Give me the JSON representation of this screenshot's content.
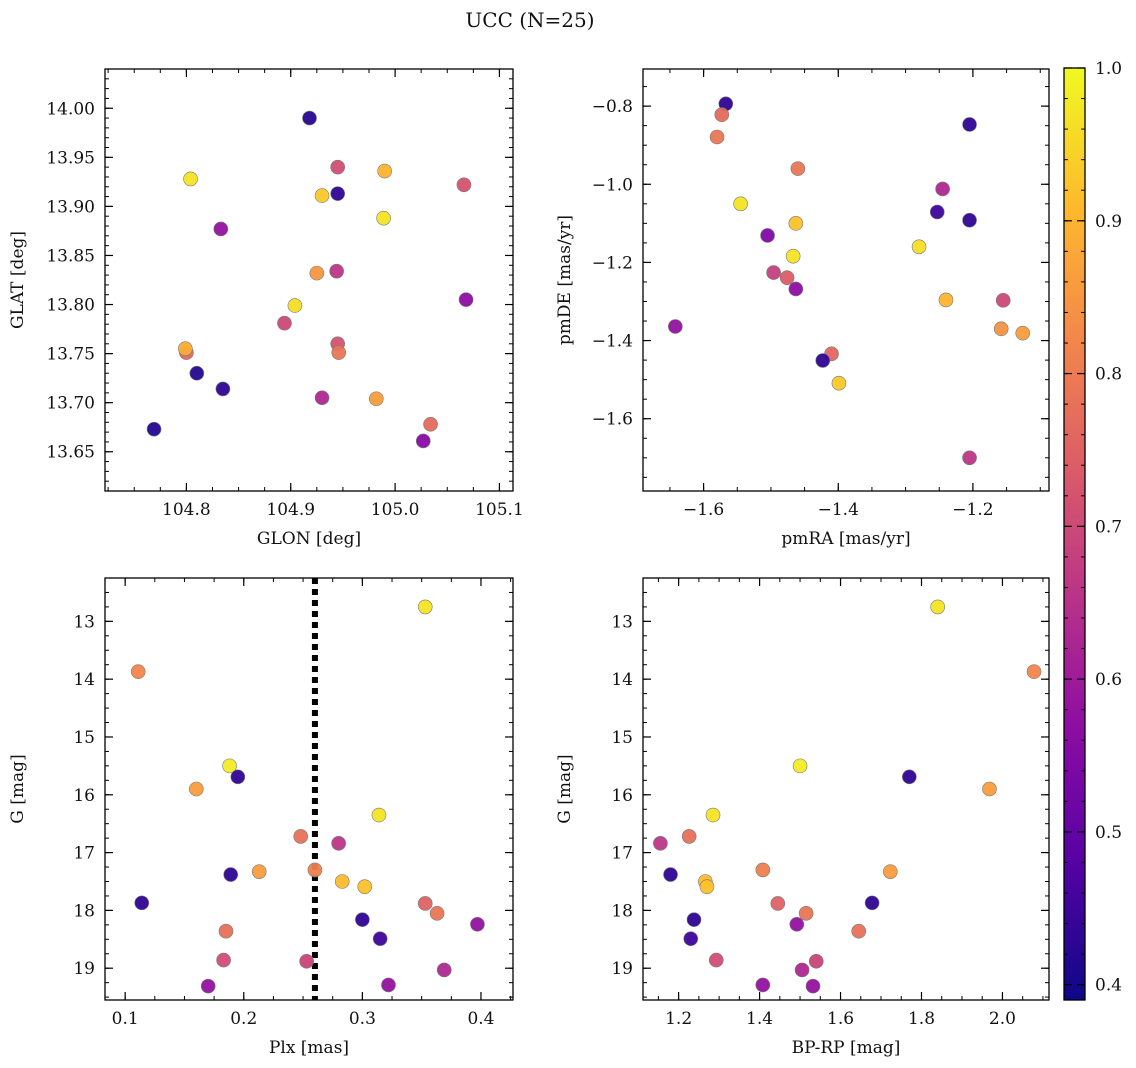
{
  "figure": {
    "title": "UCC (N=25)"
  },
  "colorbar": {
    "min": 0.39,
    "max": 1.0,
    "ticks": [
      "0.4",
      "0.5",
      "0.6",
      "0.7",
      "0.8",
      "0.9",
      "1.0"
    ],
    "colormap": "plasma"
  },
  "chart_data": [
    {
      "type": "scatter",
      "panel": "top-left",
      "xlabel": "GLON [deg]",
      "ylabel": "GLAT [deg]",
      "xlim": [
        104.722,
        105.113
      ],
      "ylim": [
        13.61,
        14.04
      ],
      "y_inverted": false,
      "xticks": [
        "104.8",
        "104.9",
        "105.0",
        "105.1"
      ],
      "yticks": [
        "13.65",
        "13.70",
        "13.75",
        "13.80",
        "13.85",
        "13.90",
        "13.95",
        "14.00"
      ],
      "points": [
        {
          "x": 104.918,
          "y": 13.99,
          "c": 0.42
        },
        {
          "x": 104.804,
          "y": 13.928,
          "c": 0.97
        },
        {
          "x": 104.945,
          "y": 13.94,
          "c": 0.71
        },
        {
          "x": 104.99,
          "y": 13.936,
          "c": 0.9
        },
        {
          "x": 105.066,
          "y": 13.922,
          "c": 0.72
        },
        {
          "x": 104.945,
          "y": 13.913,
          "c": 0.43
        },
        {
          "x": 104.93,
          "y": 13.911,
          "c": 0.93
        },
        {
          "x": 104.989,
          "y": 13.888,
          "c": 0.97
        },
        {
          "x": 104.833,
          "y": 13.877,
          "c": 0.58
        },
        {
          "x": 104.925,
          "y": 13.832,
          "c": 0.85
        },
        {
          "x": 104.944,
          "y": 13.834,
          "c": 0.66
        },
        {
          "x": 104.904,
          "y": 13.799,
          "c": 0.96
        },
        {
          "x": 104.894,
          "y": 13.781,
          "c": 0.7
        },
        {
          "x": 105.068,
          "y": 13.805,
          "c": 0.57
        },
        {
          "x": 104.945,
          "y": 13.76,
          "c": 0.72
        },
        {
          "x": 104.8,
          "y": 13.751,
          "c": 0.76
        },
        {
          "x": 104.799,
          "y": 13.755,
          "c": 0.89
        },
        {
          "x": 104.946,
          "y": 13.751,
          "c": 0.79
        },
        {
          "x": 104.81,
          "y": 13.73,
          "c": 0.42
        },
        {
          "x": 104.835,
          "y": 13.714,
          "c": 0.43
        },
        {
          "x": 104.93,
          "y": 13.705,
          "c": 0.63
        },
        {
          "x": 104.982,
          "y": 13.704,
          "c": 0.86
        },
        {
          "x": 105.034,
          "y": 13.678,
          "c": 0.77
        },
        {
          "x": 104.769,
          "y": 13.673,
          "c": 0.42
        },
        {
          "x": 105.027,
          "y": 13.661,
          "c": 0.56
        }
      ]
    },
    {
      "type": "scatter",
      "panel": "top-right",
      "xlabel": "pmRA [mas/yr]",
      "ylabel": "pmDE [mas/yr]",
      "xlim": [
        -1.69,
        -1.087
      ],
      "ylim": [
        -1.785,
        -0.705
      ],
      "y_inverted": false,
      "xticks": [
        "−1.6",
        "−1.4",
        "−1.2"
      ],
      "yticks": [
        "−1.6",
        "−1.4",
        "−1.2",
        "−1.0",
        "−0.8"
      ],
      "points": [
        {
          "x": -1.567,
          "y": -0.794,
          "c": 0.43
        },
        {
          "x": -1.573,
          "y": -0.822,
          "c": 0.77
        },
        {
          "x": -1.58,
          "y": -0.879,
          "c": 0.79
        },
        {
          "x": -1.205,
          "y": -0.847,
          "c": 0.43
        },
        {
          "x": -1.46,
          "y": -0.96,
          "c": 0.79
        },
        {
          "x": -1.245,
          "y": -1.012,
          "c": 0.63
        },
        {
          "x": -1.545,
          "y": -1.05,
          "c": 0.97
        },
        {
          "x": -1.253,
          "y": -1.071,
          "c": 0.45
        },
        {
          "x": -1.205,
          "y": -1.092,
          "c": 0.43
        },
        {
          "x": -1.463,
          "y": -1.1,
          "c": 0.92
        },
        {
          "x": -1.505,
          "y": -1.131,
          "c": 0.55
        },
        {
          "x": -1.28,
          "y": -1.16,
          "c": 0.96
        },
        {
          "x": -1.467,
          "y": -1.184,
          "c": 0.97
        },
        {
          "x": -1.496,
          "y": -1.226,
          "c": 0.68
        },
        {
          "x": -1.476,
          "y": -1.239,
          "c": 0.74
        },
        {
          "x": -1.463,
          "y": -1.268,
          "c": 0.57
        },
        {
          "x": -1.24,
          "y": -1.296,
          "c": 0.9
        },
        {
          "x": -1.155,
          "y": -1.297,
          "c": 0.7
        },
        {
          "x": -1.642,
          "y": -1.364,
          "c": 0.58
        },
        {
          "x": -1.158,
          "y": -1.37,
          "c": 0.84
        },
        {
          "x": -1.126,
          "y": -1.381,
          "c": 0.86
        },
        {
          "x": -1.41,
          "y": -1.434,
          "c": 0.76
        },
        {
          "x": -1.423,
          "y": -1.451,
          "c": 0.43
        },
        {
          "x": -1.399,
          "y": -1.509,
          "c": 0.93
        },
        {
          "x": -1.205,
          "y": -1.7,
          "c": 0.66
        }
      ]
    },
    {
      "type": "scatter",
      "panel": "bottom-left",
      "xlabel": "Plx [mas]",
      "ylabel": "G [mag]",
      "xlim": [
        0.083,
        0.427
      ],
      "ylim": [
        12.25,
        19.55
      ],
      "y_inverted": true,
      "xticks": [
        "0.1",
        "0.2",
        "0.3",
        "0.4"
      ],
      "yticks": [
        "13",
        "14",
        "15",
        "16",
        "17",
        "18",
        "19"
      ],
      "vline": 0.26,
      "points": [
        {
          "x": 0.353,
          "y": 12.75,
          "c": 0.97
        },
        {
          "x": 0.111,
          "y": 13.87,
          "c": 0.82
        },
        {
          "x": 0.188,
          "y": 15.5,
          "c": 0.98
        },
        {
          "x": 0.195,
          "y": 15.69,
          "c": 0.43
        },
        {
          "x": 0.16,
          "y": 15.9,
          "c": 0.86
        },
        {
          "x": 0.314,
          "y": 16.35,
          "c": 0.97
        },
        {
          "x": 0.248,
          "y": 16.72,
          "c": 0.78
        },
        {
          "x": 0.28,
          "y": 16.84,
          "c": 0.66
        },
        {
          "x": 0.26,
          "y": 17.3,
          "c": 0.81
        },
        {
          "x": 0.213,
          "y": 17.33,
          "c": 0.86
        },
        {
          "x": 0.189,
          "y": 17.38,
          "c": 0.43
        },
        {
          "x": 0.283,
          "y": 17.5,
          "c": 0.91
        },
        {
          "x": 0.302,
          "y": 17.59,
          "c": 0.92
        },
        {
          "x": 0.114,
          "y": 17.87,
          "c": 0.43
        },
        {
          "x": 0.353,
          "y": 17.88,
          "c": 0.75
        },
        {
          "x": 0.363,
          "y": 18.05,
          "c": 0.79
        },
        {
          "x": 0.3,
          "y": 18.16,
          "c": 0.43
        },
        {
          "x": 0.397,
          "y": 18.24,
          "c": 0.58
        },
        {
          "x": 0.185,
          "y": 18.36,
          "c": 0.78
        },
        {
          "x": 0.315,
          "y": 18.49,
          "c": 0.45
        },
        {
          "x": 0.183,
          "y": 18.86,
          "c": 0.71
        },
        {
          "x": 0.253,
          "y": 18.88,
          "c": 0.69
        },
        {
          "x": 0.369,
          "y": 19.03,
          "c": 0.63
        },
        {
          "x": 0.322,
          "y": 19.29,
          "c": 0.58
        },
        {
          "x": 0.17,
          "y": 19.31,
          "c": 0.58
        }
      ]
    },
    {
      "type": "scatter",
      "panel": "bottom-right",
      "xlabel": "BP-RP [mag]",
      "ylabel": "G [mag]",
      "xlim": [
        1.112,
        2.115
      ],
      "ylim": [
        12.25,
        19.55
      ],
      "y_inverted": true,
      "xticks": [
        "1.2",
        "1.4",
        "1.6",
        "1.8",
        "2.0"
      ],
      "yticks": [
        "13",
        "14",
        "15",
        "16",
        "17",
        "18",
        "19"
      ],
      "points": [
        {
          "x": 1.84,
          "y": 12.75,
          "c": 0.97
        },
        {
          "x": 2.078,
          "y": 13.87,
          "c": 0.82
        },
        {
          "x": 1.5,
          "y": 15.5,
          "c": 0.98
        },
        {
          "x": 1.77,
          "y": 15.69,
          "c": 0.43
        },
        {
          "x": 1.968,
          "y": 15.9,
          "c": 0.86
        },
        {
          "x": 1.285,
          "y": 16.35,
          "c": 0.97
        },
        {
          "x": 1.226,
          "y": 16.72,
          "c": 0.78
        },
        {
          "x": 1.155,
          "y": 16.84,
          "c": 0.66
        },
        {
          "x": 1.408,
          "y": 17.3,
          "c": 0.81
        },
        {
          "x": 1.723,
          "y": 17.33,
          "c": 0.86
        },
        {
          "x": 1.18,
          "y": 17.38,
          "c": 0.43
        },
        {
          "x": 1.266,
          "y": 17.5,
          "c": 0.91
        },
        {
          "x": 1.27,
          "y": 17.59,
          "c": 0.92
        },
        {
          "x": 1.678,
          "y": 17.87,
          "c": 0.43
        },
        {
          "x": 1.445,
          "y": 17.88,
          "c": 0.75
        },
        {
          "x": 1.515,
          "y": 18.05,
          "c": 0.79
        },
        {
          "x": 1.238,
          "y": 18.16,
          "c": 0.43
        },
        {
          "x": 1.492,
          "y": 18.24,
          "c": 0.58
        },
        {
          "x": 1.645,
          "y": 18.36,
          "c": 0.78
        },
        {
          "x": 1.23,
          "y": 18.49,
          "c": 0.45
        },
        {
          "x": 1.293,
          "y": 18.86,
          "c": 0.71
        },
        {
          "x": 1.54,
          "y": 18.88,
          "c": 0.69
        },
        {
          "x": 1.505,
          "y": 19.03,
          "c": 0.63
        },
        {
          "x": 1.408,
          "y": 19.29,
          "c": 0.58
        },
        {
          "x": 1.532,
          "y": 19.31,
          "c": 0.58
        }
      ]
    }
  ]
}
